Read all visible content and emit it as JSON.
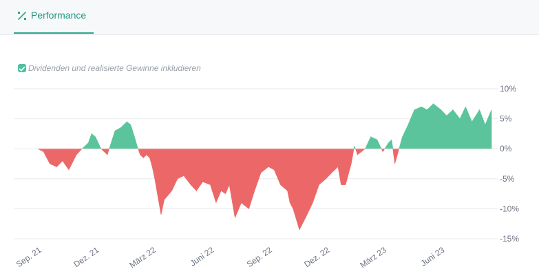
{
  "tab": {
    "label": "Performance"
  },
  "options": {
    "checkbox_label": "Dividenden und realisierte Gewinne inkludieren",
    "checked": true
  },
  "colors": {
    "accent": "#2aa58a",
    "positive": "#5bc49c",
    "negative": "#ec6868"
  },
  "chart_data": {
    "type": "area",
    "ylim": [
      -15,
      10
    ],
    "y_ticks": [
      10,
      5,
      0,
      -5,
      -10,
      -15
    ],
    "y_tick_labels": [
      "10%",
      "5%",
      "0%",
      "-5%",
      "-10%",
      "-15%"
    ],
    "x_tick_labels": [
      "Sep. 21",
      "Dez. 21",
      "März 22",
      "Juni 22",
      "Sep. 22",
      "Dez. 22",
      "März 23",
      "Juni 23"
    ],
    "x_tick_dates": [
      "2021-09-01",
      "2021-12-01",
      "2022-03-01",
      "2022-06-01",
      "2022-09-01",
      "2022-12-01",
      "2023-03-01",
      "2023-06-01"
    ],
    "series": [
      {
        "x": [
          "2021-09-01",
          "2021-09-10",
          "2021-09-20",
          "2021-10-01",
          "2021-10-10",
          "2021-10-20",
          "2021-11-01",
          "2021-11-10",
          "2021-11-20",
          "2021-11-25",
          "2021-12-01",
          "2021-12-10",
          "2021-12-20",
          "2022-01-01",
          "2022-01-10",
          "2022-01-20",
          "2022-01-26",
          "2022-02-01",
          "2022-02-05",
          "2022-02-10",
          "2022-02-15",
          "2022-02-20",
          "2022-02-25",
          "2022-03-01",
          "2022-03-05",
          "2022-03-10",
          "2022-03-15",
          "2022-03-20",
          "2022-04-01",
          "2022-04-10",
          "2022-04-20",
          "2022-05-01",
          "2022-05-10",
          "2022-05-20",
          "2022-06-01",
          "2022-06-10",
          "2022-06-18",
          "2022-06-25",
          "2022-07-01",
          "2022-07-10",
          "2022-07-20",
          "2022-08-01",
          "2022-08-10",
          "2022-08-20",
          "2022-09-01",
          "2022-09-10",
          "2022-09-20",
          "2022-10-01",
          "2022-10-05",
          "2022-10-10",
          "2022-10-20",
          "2022-11-01",
          "2022-11-10",
          "2022-11-20",
          "2022-12-01",
          "2022-12-10",
          "2022-12-20",
          "2022-12-25",
          "2023-01-01",
          "2023-01-10",
          "2023-01-15",
          "2023-01-20",
          "2023-02-01",
          "2023-02-10",
          "2023-02-20",
          "2023-03-01",
          "2023-03-10",
          "2023-03-15",
          "2023-03-20",
          "2023-04-01",
          "2023-04-10",
          "2023-04-20",
          "2023-05-01",
          "2023-05-10",
          "2023-05-20",
          "2023-06-01",
          "2023-06-10",
          "2023-06-20",
          "2023-07-01",
          "2023-07-10",
          "2023-07-20",
          "2023-08-01",
          "2023-08-10",
          "2023-08-20"
        ],
        "y": [
          0,
          -0.5,
          -2.5,
          -3,
          -2,
          -3.5,
          -1,
          0,
          1,
          2.5,
          2,
          0,
          -1,
          3,
          3.5,
          4.5,
          4,
          2,
          0.5,
          -1,
          -1.5,
          -1,
          -1.5,
          -3,
          -5,
          -8,
          -11,
          -8.5,
          -7,
          -5,
          -4.5,
          -6,
          -7,
          -5.5,
          -6,
          -9,
          -7,
          -7.5,
          -6,
          -11.5,
          -9,
          -10,
          -7,
          -4,
          -3,
          -3.5,
          -6,
          -7,
          -9,
          -10,
          -13.5,
          -11,
          -9,
          -6,
          -5,
          -4,
          -3,
          -6,
          -6,
          -2.5,
          0.5,
          -1,
          0,
          2,
          1.5,
          -0.5,
          1,
          1.5,
          -2.5,
          2,
          4,
          6.5,
          7,
          6.5,
          7.5,
          6.5,
          5.5,
          6.5,
          5,
          7,
          4.5,
          6.5,
          4,
          6.5
        ]
      }
    ]
  }
}
